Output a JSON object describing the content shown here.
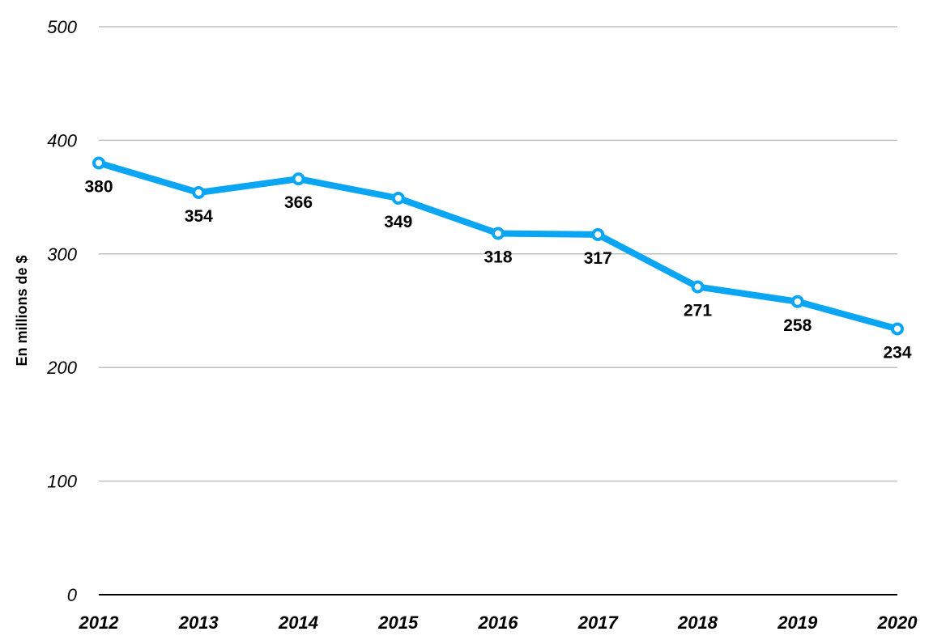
{
  "chart_data": {
    "type": "line",
    "ylabel": "En millions de $",
    "xlabel": "",
    "ylim": [
      0,
      500
    ],
    "yticks": [
      "0",
      "100",
      "200",
      "300",
      "400",
      "500"
    ],
    "grid": true,
    "categories": [
      "2012",
      "2013",
      "2014",
      "2015",
      "2016",
      "2017",
      "2018",
      "2019",
      "2020"
    ],
    "series": [
      {
        "values": [
          380,
          354,
          366,
          349,
          318,
          317,
          271,
          258,
          234
        ]
      }
    ],
    "data_labels": [
      "380",
      "354",
      "366",
      "349",
      "318",
      "317",
      "271",
      "258",
      "234"
    ],
    "colors": {
      "line": "#0aa6f4",
      "grid": "#bfbfbf",
      "axis": "#000000"
    }
  }
}
